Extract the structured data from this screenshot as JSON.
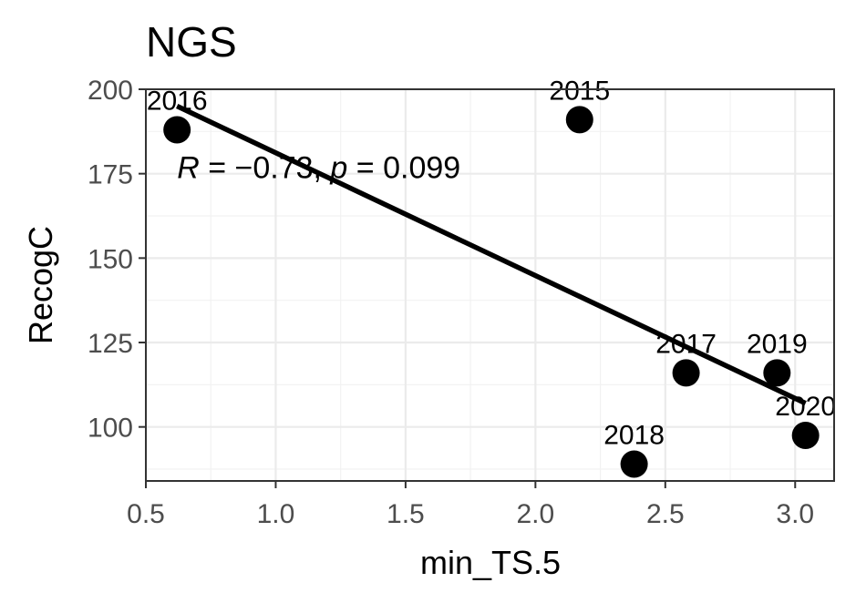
{
  "chart_data": {
    "type": "scatter",
    "title": "NGS",
    "xlabel": "min_TS.5",
    "ylabel": "RecogC",
    "xlim": [
      0.5,
      3.15
    ],
    "ylim": [
      84,
      200
    ],
    "x_ticks": [
      0.5,
      1.0,
      1.5,
      2.0,
      2.5,
      3.0
    ],
    "x_tick_labels": [
      "0.5",
      "1.0",
      "1.5",
      "2.0",
      "2.5",
      "3.0"
    ],
    "y_ticks": [
      100,
      125,
      150,
      175,
      200
    ],
    "y_tick_labels": [
      "100",
      "125",
      "150",
      "175",
      "200"
    ],
    "grid": true,
    "points": [
      {
        "label": "2016",
        "x": 0.62,
        "y": 188
      },
      {
        "label": "2015",
        "x": 2.17,
        "y": 191
      },
      {
        "label": "2017",
        "x": 2.58,
        "y": 116
      },
      {
        "label": "2018",
        "x": 2.38,
        "y": 89
      },
      {
        "label": "2019",
        "x": 2.93,
        "y": 116
      },
      {
        "label": "2020",
        "x": 3.04,
        "y": 97.5
      }
    ],
    "regression_line": {
      "x": [
        0.62,
        3.04
      ],
      "y": [
        195,
        107
      ]
    },
    "annotation": {
      "r_symbol": "R",
      "r_text": " = −0.73, ",
      "p_symbol": "p",
      "p_text": " = 0.099",
      "x": 0.62,
      "y": 177
    }
  },
  "colors": {
    "point": "#000000",
    "line": "#000000"
  }
}
